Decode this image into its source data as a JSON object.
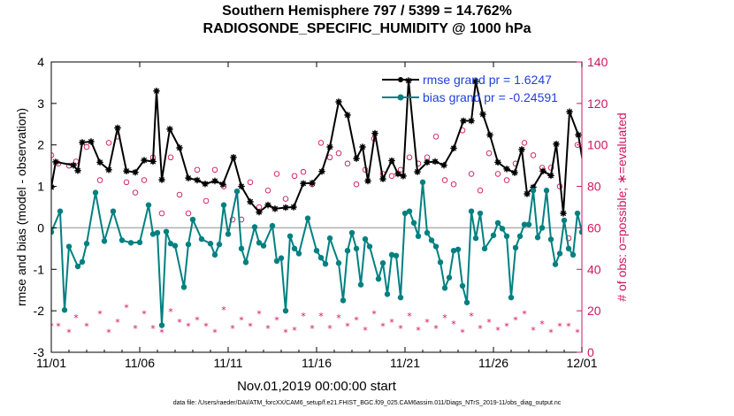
{
  "chart_data": {
    "type": "line",
    "title": "Southern Hemisphere 797 / 5399 = 14.762%",
    "subtitle": "RADIOSONDE_SPECIFIC_HUMIDITY @ 1000 hPa",
    "xlabel": "Nov.01,2019 00:00:00 start",
    "ylabel": "rmse and bias (model - observation)",
    "y2label": "# of obs: o=possible; ∗=evaluated",
    "footnote": "data file: /Users/raeder/DAI/ATM_forcXX/CAM6_setup/f.e21.FHIST_BGC.f09_025.CAM6assim.011/Diags_NTrS_2019-11/obs_diag_output.nc",
    "xlim": [
      0,
      30
    ],
    "ylim": [
      -3,
      4
    ],
    "y2lim": [
      0,
      140
    ],
    "xticks": [
      0,
      5,
      10,
      15,
      20,
      25,
      30
    ],
    "xtick_labels": [
      "11/01",
      "11/06",
      "11/11",
      "11/16",
      "11/21",
      "11/26",
      "12/01"
    ],
    "yticks": [
      -3,
      -2,
      -1,
      0,
      1,
      2,
      3,
      4
    ],
    "y2ticks": [
      0,
      20,
      40,
      60,
      80,
      100,
      120,
      140
    ],
    "grid": false,
    "legend_position": "top-right",
    "colors": {
      "rmse": "#000000",
      "bias": "#008080",
      "obs": "#d0145c",
      "zero": "#b0b0b0",
      "legend_text": "#1f3fdf"
    },
    "series": [
      {
        "name": "rmse grand pr = 1.6247",
        "color": "#000000",
        "points": [
          [
            0.0,
            0.98
          ],
          [
            0.25,
            1.59
          ],
          [
            1.25,
            1.51
          ],
          [
            1.5,
            1.38
          ],
          [
            1.75,
            2.06
          ],
          [
            2.25,
            2.08
          ],
          [
            2.75,
            1.58
          ],
          [
            3.25,
            1.4
          ],
          [
            3.75,
            2.41
          ],
          [
            4.25,
            1.37
          ],
          [
            4.75,
            1.34
          ],
          [
            5.25,
            1.63
          ],
          [
            5.75,
            1.6
          ],
          [
            5.95,
            3.3
          ],
          [
            6.25,
            1.16
          ],
          [
            6.7,
            2.38
          ],
          [
            7.25,
            1.93
          ],
          [
            7.75,
            1.2
          ],
          [
            8.25,
            1.15
          ],
          [
            8.7,
            1.06
          ],
          [
            9.25,
            1.13
          ],
          [
            9.7,
            1.05
          ],
          [
            10.3,
            1.7
          ],
          [
            10.75,
            1.0
          ],
          [
            11.25,
            0.63
          ],
          [
            11.75,
            0.38
          ],
          [
            12.25,
            0.55
          ],
          [
            12.65,
            0.46
          ],
          [
            13.25,
            0.49
          ],
          [
            13.7,
            0.5
          ],
          [
            14.25,
            1.07
          ],
          [
            14.75,
            1.08
          ],
          [
            15.3,
            1.36
          ],
          [
            15.75,
            1.95
          ],
          [
            16.25,
            3.04
          ],
          [
            16.75,
            2.72
          ],
          [
            17.25,
            1.67
          ],
          [
            17.6,
            1.95
          ],
          [
            17.9,
            1.13
          ],
          [
            18.3,
            2.28
          ],
          [
            18.75,
            1.18
          ],
          [
            19.25,
            1.62
          ],
          [
            19.6,
            1.3
          ],
          [
            19.9,
            1.25
          ],
          [
            20.2,
            3.55
          ],
          [
            20.7,
            1.35
          ],
          [
            21.25,
            1.58
          ],
          [
            21.7,
            1.6
          ],
          [
            22.2,
            1.51
          ],
          [
            22.75,
            1.92
          ],
          [
            23.3,
            2.58
          ],
          [
            23.75,
            2.58
          ],
          [
            24.0,
            3.53
          ],
          [
            24.4,
            2.74
          ],
          [
            24.8,
            2.24
          ],
          [
            25.25,
            1.58
          ],
          [
            25.75,
            1.42
          ],
          [
            26.2,
            1.33
          ],
          [
            26.6,
            1.89
          ],
          [
            26.9,
            0.82
          ],
          [
            27.25,
            0.98
          ],
          [
            27.8,
            1.37
          ],
          [
            28.25,
            1.26
          ],
          [
            28.55,
            2.02
          ],
          [
            28.95,
            0.35
          ],
          [
            29.3,
            2.8
          ],
          [
            29.8,
            2.24
          ],
          [
            30.25,
            1.08
          ],
          [
            30.7,
            1.52
          ],
          [
            31.0,
            0.43
          ]
        ]
      },
      {
        "name": "bias grand pr = -0.24591",
        "color": "#008080",
        "points": [
          [
            0.0,
            -0.1
          ],
          [
            0.5,
            0.4
          ],
          [
            0.75,
            -1.98
          ],
          [
            1.0,
            -0.45
          ],
          [
            1.5,
            -0.93
          ],
          [
            1.75,
            -0.82
          ],
          [
            2.0,
            -0.38
          ],
          [
            2.5,
            0.85
          ],
          [
            3.0,
            -0.32
          ],
          [
            3.5,
            0.4
          ],
          [
            4.0,
            -0.3
          ],
          [
            4.5,
            -0.36
          ],
          [
            5.0,
            -0.35
          ],
          [
            5.5,
            0.55
          ],
          [
            5.75,
            -0.15
          ],
          [
            6.0,
            -0.12
          ],
          [
            6.25,
            -2.35
          ],
          [
            6.5,
            -0.09
          ],
          [
            6.75,
            -0.38
          ],
          [
            7.0,
            -0.43
          ],
          [
            7.5,
            -1.43
          ],
          [
            7.75,
            -0.4
          ],
          [
            8.0,
            0.2
          ],
          [
            8.5,
            -0.27
          ],
          [
            9.0,
            -0.38
          ],
          [
            9.25,
            -0.65
          ],
          [
            9.5,
            -0.4
          ],
          [
            9.75,
            0.55
          ],
          [
            10.0,
            -0.15
          ],
          [
            10.5,
            0.88
          ],
          [
            10.75,
            -0.5
          ],
          [
            11.0,
            -0.83
          ],
          [
            11.5,
            0.02
          ],
          [
            11.75,
            -0.36
          ],
          [
            12.0,
            -0.43
          ],
          [
            12.5,
            0.05
          ],
          [
            12.75,
            -0.8
          ],
          [
            13.0,
            -0.73
          ],
          [
            13.25,
            -2.0
          ],
          [
            13.5,
            -0.2
          ],
          [
            13.75,
            -0.5
          ],
          [
            14.0,
            -0.62
          ],
          [
            14.5,
            0.23
          ],
          [
            15.0,
            -0.55
          ],
          [
            15.25,
            -0.72
          ],
          [
            15.5,
            -0.87
          ],
          [
            15.75,
            -0.25
          ],
          [
            16.25,
            -0.85
          ],
          [
            16.5,
            -1.75
          ],
          [
            16.75,
            -0.55
          ],
          [
            17.0,
            -0.12
          ],
          [
            17.25,
            -0.5
          ],
          [
            17.5,
            -1.37
          ],
          [
            17.75,
            -0.27
          ],
          [
            18.0,
            -0.45
          ],
          [
            18.5,
            -1.23
          ],
          [
            18.75,
            -0.85
          ],
          [
            19.0,
            -1.6
          ],
          [
            19.25,
            -0.65
          ],
          [
            19.5,
            -0.67
          ],
          [
            19.75,
            -1.68
          ],
          [
            20.0,
            0.35
          ],
          [
            20.25,
            0.4
          ],
          [
            20.5,
            0.12
          ],
          [
            20.75,
            -0.2
          ],
          [
            21.0,
            1.1
          ],
          [
            21.25,
            -0.12
          ],
          [
            21.5,
            -0.3
          ],
          [
            21.75,
            -0.45
          ],
          [
            22.0,
            -0.83
          ],
          [
            22.25,
            -1.45
          ],
          [
            22.5,
            -1.2
          ],
          [
            22.75,
            -0.55
          ],
          [
            23.0,
            -0.52
          ],
          [
            23.25,
            -1.4
          ],
          [
            23.5,
            -1.8
          ],
          [
            23.75,
            0.4
          ],
          [
            24.0,
            -0.25
          ],
          [
            24.25,
            0.35
          ],
          [
            24.5,
            -0.5
          ],
          [
            25.0,
            -0.18
          ],
          [
            25.25,
            0.12
          ],
          [
            25.5,
            -0.02
          ],
          [
            25.75,
            -0.2
          ],
          [
            26.0,
            -1.68
          ],
          [
            26.25,
            -0.48
          ],
          [
            26.5,
            -0.2
          ],
          [
            26.75,
            0.08
          ],
          [
            27.0,
            0.08
          ],
          [
            27.25,
            0.9
          ],
          [
            27.5,
            -0.23
          ],
          [
            27.75,
            0.0
          ],
          [
            28.0,
            0.9
          ],
          [
            28.25,
            -0.28
          ],
          [
            28.5,
            -0.88
          ],
          [
            28.75,
            -0.62
          ],
          [
            29.0,
            0.18
          ],
          [
            29.25,
            -0.5
          ],
          [
            29.5,
            -0.65
          ],
          [
            29.75,
            0.35
          ],
          [
            30.0,
            -0.1
          ],
          [
            30.25,
            0.15
          ],
          [
            30.5,
            0.38
          ],
          [
            30.75,
            -0.7
          ],
          [
            31.0,
            0.15
          ]
        ]
      }
    ],
    "obs_possible": [
      [
        0.0,
        95
      ],
      [
        0.4,
        91
      ],
      [
        1.0,
        90
      ],
      [
        1.4,
        92
      ],
      [
        2.0,
        99
      ],
      [
        2.75,
        83
      ],
      [
        3.25,
        101
      ],
      [
        3.75,
        104
      ],
      [
        4.25,
        82
      ],
      [
        4.75,
        77
      ],
      [
        5.25,
        83
      ],
      [
        5.75,
        94
      ],
      [
        6.25,
        67
      ],
      [
        6.75,
        94
      ],
      [
        7.25,
        76
      ],
      [
        7.75,
        67
      ],
      [
        8.25,
        88
      ],
      [
        8.75,
        73
      ],
      [
        9.25,
        88
      ],
      [
        9.75,
        80
      ],
      [
        10.25,
        64
      ],
      [
        10.75,
        64
      ],
      [
        11.25,
        82
      ],
      [
        11.75,
        70
      ],
      [
        12.25,
        78
      ],
      [
        12.75,
        86
      ],
      [
        13.25,
        74
      ],
      [
        13.75,
        85
      ],
      [
        14.25,
        87
      ],
      [
        14.75,
        81
      ],
      [
        15.25,
        101
      ],
      [
        15.75,
        94
      ],
      [
        16.25,
        96
      ],
      [
        16.75,
        91
      ],
      [
        17.25,
        81
      ],
      [
        17.75,
        88
      ],
      [
        18.25,
        103
      ],
      [
        18.75,
        86
      ],
      [
        19.25,
        85
      ],
      [
        19.75,
        88
      ],
      [
        20.25,
        94
      ],
      [
        20.75,
        91
      ],
      [
        21.25,
        94
      ],
      [
        21.75,
        104
      ],
      [
        22.25,
        83
      ],
      [
        22.75,
        81
      ],
      [
        23.25,
        107
      ],
      [
        23.75,
        86
      ],
      [
        24.25,
        78
      ],
      [
        24.75,
        96
      ],
      [
        25.25,
        86
      ],
      [
        25.75,
        83
      ],
      [
        26.25,
        91
      ],
      [
        26.75,
        101
      ],
      [
        27.25,
        95
      ],
      [
        27.75,
        89
      ],
      [
        28.25,
        89
      ],
      [
        28.75,
        80
      ],
      [
        29.25,
        55
      ],
      [
        29.75,
        100
      ],
      [
        30.25,
        85
      ],
      [
        30.75,
        80
      ]
    ],
    "obs_evaluated": [
      [
        0.0,
        13
      ],
      [
        0.4,
        13
      ],
      [
        1.0,
        10
      ],
      [
        1.4,
        17
      ],
      [
        2.0,
        13
      ],
      [
        2.75,
        19
      ],
      [
        3.25,
        10
      ],
      [
        3.75,
        15
      ],
      [
        4.25,
        22
      ],
      [
        4.75,
        12
      ],
      [
        5.25,
        19
      ],
      [
        5.75,
        12
      ],
      [
        6.25,
        10
      ],
      [
        6.75,
        20
      ],
      [
        7.25,
        15
      ],
      [
        7.75,
        13
      ],
      [
        8.25,
        16
      ],
      [
        8.75,
        13
      ],
      [
        9.25,
        10
      ],
      [
        9.75,
        21
      ],
      [
        10.25,
        12
      ],
      [
        10.75,
        16
      ],
      [
        11.25,
        13
      ],
      [
        11.75,
        19
      ],
      [
        12.25,
        12
      ],
      [
        12.75,
        16
      ],
      [
        13.25,
        10
      ],
      [
        13.75,
        11
      ],
      [
        14.25,
        18
      ],
      [
        14.75,
        12
      ],
      [
        15.25,
        18
      ],
      [
        15.75,
        12
      ],
      [
        16.25,
        17
      ],
      [
        16.75,
        13
      ],
      [
        17.25,
        16
      ],
      [
        17.75,
        11
      ],
      [
        18.25,
        19
      ],
      [
        18.75,
        13
      ],
      [
        19.25,
        15
      ],
      [
        19.75,
        12
      ],
      [
        20.25,
        18
      ],
      [
        20.75,
        11
      ],
      [
        21.25,
        15
      ],
      [
        21.75,
        12
      ],
      [
        22.25,
        17
      ],
      [
        22.75,
        14
      ],
      [
        23.25,
        10
      ],
      [
        23.75,
        18
      ],
      [
        24.25,
        12
      ],
      [
        24.75,
        15
      ],
      [
        25.25,
        11
      ],
      [
        25.75,
        13
      ],
      [
        26.25,
        16
      ],
      [
        26.75,
        19
      ],
      [
        27.25,
        11
      ],
      [
        27.75,
        14
      ],
      [
        28.25,
        10
      ],
      [
        28.75,
        13
      ],
      [
        29.25,
        13
      ],
      [
        29.75,
        10
      ],
      [
        30.25,
        11
      ],
      [
        30.75,
        13
      ]
    ]
  }
}
